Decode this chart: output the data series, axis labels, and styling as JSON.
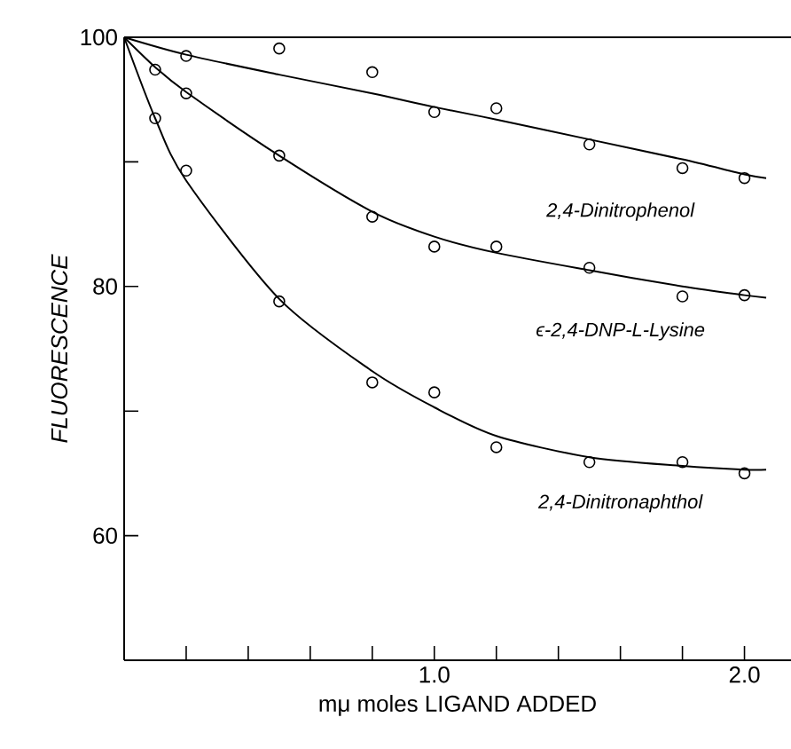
{
  "chart_data": {
    "type": "scatter",
    "xlabel": "mμ moles LIGAND ADDED",
    "ylabel": "FLUORESCENCE",
    "xlim": [
      0,
      2.15
    ],
    "ylim": [
      50,
      100
    ],
    "xticks": [
      {
        "value": 0.2,
        "label": null
      },
      {
        "value": 0.4,
        "label": null
      },
      {
        "value": 0.6,
        "label": null
      },
      {
        "value": 0.8,
        "label": null
      },
      {
        "value": 1.0,
        "label": "1.0"
      },
      {
        "value": 1.2,
        "label": null
      },
      {
        "value": 1.4,
        "label": null
      },
      {
        "value": 1.6,
        "label": null
      },
      {
        "value": 1.8,
        "label": null
      },
      {
        "value": 2.0,
        "label": "2.0"
      }
    ],
    "yticks": [
      {
        "value": 60,
        "label": "60"
      },
      {
        "value": 70,
        "label": null
      },
      {
        "value": 80,
        "label": "80"
      },
      {
        "value": 90,
        "label": null
      },
      {
        "value": 100,
        "label": "100"
      }
    ],
    "marker": "circle",
    "ref_lines": [
      {
        "axis": "y",
        "value": 100,
        "color": "#000000"
      }
    ],
    "series": [
      {
        "color": "#000000",
        "x": [
          0.2,
          0.5,
          0.8,
          1.0,
          1.2,
          1.5,
          1.8,
          2.0
        ],
        "values": [
          98.5,
          99.1,
          97.2,
          94.0,
          94.3,
          91.4,
          89.5,
          88.7
        ]
      },
      {
        "color": "#000000",
        "x": [
          0.1,
          0.2,
          0.5,
          0.8,
          1.0,
          1.2,
          1.5,
          1.8,
          2.0
        ],
        "values": [
          97.4,
          95.5,
          90.5,
          85.6,
          83.2,
          83.2,
          81.5,
          79.2,
          79.3
        ]
      },
      {
        "color": "#000000",
        "x": [
          0.1,
          0.2,
          0.5,
          0.8,
          1.0,
          1.2,
          1.5,
          1.8,
          2.0
        ],
        "values": [
          93.5,
          89.3,
          78.8,
          72.3,
          71.5,
          67.1,
          65.9,
          65.9,
          65.0
        ]
      },
      {
        "type": "line",
        "name": "2,4-Dinitrophenol",
        "color": "#000000",
        "marker": "none",
        "x": [
          0,
          0.2,
          0.5,
          0.8,
          1.0,
          1.2,
          1.5,
          1.8,
          2.0,
          2.07
        ],
        "values": [
          100,
          98.6,
          97,
          95.5,
          94.4,
          93.4,
          91.8,
          90.2,
          89.0,
          88.7
        ]
      },
      {
        "type": "line",
        "name": "ϵ-2,4-DNP-L-Lysine",
        "color": "#000000",
        "marker": "none",
        "x": [
          0,
          0.1,
          0.2,
          0.5,
          0.8,
          1.0,
          1.2,
          1.5,
          1.8,
          2.0,
          2.07
        ],
        "values": [
          100,
          97.6,
          95.6,
          90.5,
          86,
          84,
          82.7,
          81.3,
          80.0,
          79.3,
          79.1
        ]
      },
      {
        "type": "line",
        "name": "2,4-Dinitronaphthol",
        "color": "#000000",
        "marker": "none",
        "x": [
          0,
          0.1,
          0.2,
          0.5,
          0.8,
          1.0,
          1.2,
          1.5,
          1.8,
          2.0,
          2.07
        ],
        "values": [
          100,
          93.5,
          88.5,
          79,
          73.2,
          70.3,
          68,
          66.3,
          65.6,
          65.3,
          65.3
        ]
      }
    ]
  }
}
